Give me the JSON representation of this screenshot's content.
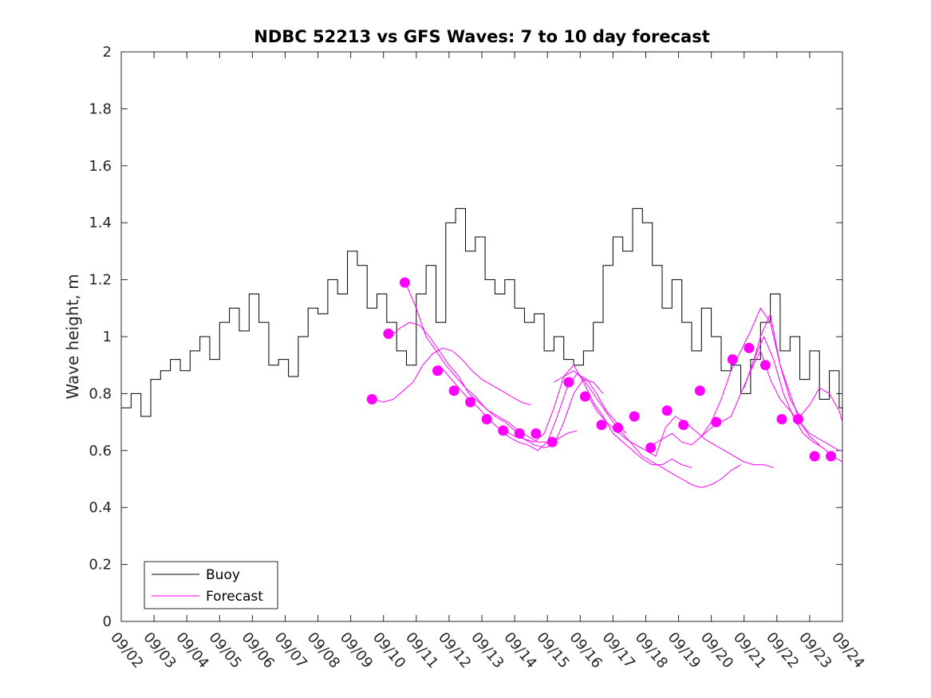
{
  "chart_data": {
    "type": "line",
    "title": "NDBC 52213 vs GFS Waves: 7 to 10 day forecast",
    "xlabel": "",
    "ylabel": "Wave height, m",
    "xlim": [
      0,
      22
    ],
    "ylim": [
      0,
      2
    ],
    "x_tick_labels": [
      "09/02",
      "09/03",
      "09/04",
      "09/05",
      "09/06",
      "09/07",
      "09/08",
      "09/09",
      "09/10",
      "09/11",
      "09/12",
      "09/13",
      "09/14",
      "09/15",
      "09/16",
      "09/17",
      "09/18",
      "09/19",
      "09/20",
      "09/21",
      "09/22",
      "09/23",
      "09/24"
    ],
    "y_ticks": [
      0,
      0.2,
      0.4,
      0.6,
      0.8,
      1,
      1.2,
      1.4,
      1.6,
      1.8,
      2
    ],
    "y_tick_labels": [
      "0",
      "0.2",
      "0.4",
      "0.6",
      "0.8",
      "1",
      "1.2",
      "1.4",
      "1.6",
      "1.8",
      "2"
    ],
    "legend": {
      "position": "bottom-left",
      "entries": [
        {
          "label": "Buoy",
          "color": "#000000"
        },
        {
          "label": "Forecast",
          "color": "#ff00ff"
        }
      ]
    },
    "buoy": {
      "name": "Buoy",
      "color": "#000000",
      "x": [
        0,
        0.3,
        0.6,
        0.9,
        1.2,
        1.5,
        1.8,
        2.1,
        2.4,
        2.7,
        3.0,
        3.3,
        3.6,
        3.9,
        4.2,
        4.5,
        4.8,
        5.1,
        5.4,
        5.7,
        6.0,
        6.3,
        6.6,
        6.9,
        7.2,
        7.5,
        7.8,
        8.1,
        8.4,
        8.7,
        9.0,
        9.3,
        9.6,
        9.9,
        10.2,
        10.5,
        10.8,
        11.1,
        11.4,
        11.7,
        12.0,
        12.3,
        12.6,
        12.9,
        13.2,
        13.5,
        13.8,
        14.1,
        14.4,
        14.7,
        15.0,
        15.3,
        15.6,
        15.9,
        16.2,
        16.5,
        16.8,
        17.1,
        17.4,
        17.7,
        18.0,
        18.3,
        18.6,
        18.9,
        19.2,
        19.5,
        19.8,
        20.1,
        20.4,
        20.7,
        21.0,
        21.3,
        21.6,
        21.9,
        22.0
      ],
      "y": [
        0.75,
        0.8,
        0.72,
        0.85,
        0.88,
        0.92,
        0.88,
        0.95,
        1.0,
        0.92,
        1.05,
        1.1,
        1.02,
        1.15,
        1.05,
        0.9,
        0.92,
        0.86,
        1.0,
        1.1,
        1.08,
        1.2,
        1.15,
        1.3,
        1.25,
        1.1,
        1.15,
        1.05,
        0.95,
        0.9,
        1.15,
        1.25,
        1.05,
        1.4,
        1.45,
        1.3,
        1.35,
        1.2,
        1.15,
        1.2,
        1.1,
        1.05,
        1.08,
        0.95,
        1.0,
        0.92,
        0.9,
        0.95,
        1.05,
        1.25,
        1.35,
        1.3,
        1.45,
        1.4,
        1.25,
        1.1,
        1.2,
        1.05,
        0.95,
        1.1,
        1.0,
        0.88,
        0.9,
        0.8,
        0.92,
        1.05,
        1.15,
        0.95,
        1.0,
        0.85,
        0.95,
        0.78,
        0.88,
        0.75,
        0.72
      ]
    },
    "forecast_lines": [
      {
        "x": [
          7.7,
          8.0,
          8.3,
          8.6,
          8.9,
          9.2,
          9.5,
          9.8,
          10.1,
          10.4,
          10.7,
          11.0,
          11.3,
          11.6,
          11.9,
          12.2,
          12.5
        ],
        "y": [
          0.78,
          0.77,
          0.78,
          0.81,
          0.84,
          0.9,
          0.94,
          0.96,
          0.95,
          0.92,
          0.88,
          0.85,
          0.83,
          0.81,
          0.79,
          0.77,
          0.76
        ]
      },
      {
        "x": [
          8.2,
          8.5,
          8.8,
          9.1,
          9.4,
          9.7,
          10.0,
          10.3,
          10.6,
          10.9,
          11.2,
          11.5,
          11.8,
          12.1,
          12.4,
          12.7,
          13.0,
          13.3,
          13.6,
          13.9
        ],
        "y": [
          1.0,
          1.03,
          1.05,
          1.04,
          1.0,
          0.95,
          0.9,
          0.86,
          0.8,
          0.77,
          0.74,
          0.72,
          0.7,
          0.67,
          0.65,
          0.63,
          0.63,
          0.64,
          0.66,
          0.67
        ]
      },
      {
        "x": [
          8.7,
          9.0,
          9.3,
          9.6,
          9.9,
          10.2,
          10.5,
          10.8,
          11.1,
          11.4,
          11.7,
          12.0,
          12.3,
          12.6,
          12.9,
          13.2,
          13.5,
          13.8,
          14.1,
          14.4,
          14.7
        ],
        "y": [
          1.18,
          1.1,
          1.0,
          0.95,
          0.9,
          0.86,
          0.82,
          0.79,
          0.75,
          0.72,
          0.7,
          0.67,
          0.64,
          0.62,
          0.61,
          0.62,
          0.7,
          0.8,
          0.85,
          0.84,
          0.8
        ]
      },
      {
        "x": [
          9.7,
          10.0,
          10.3,
          10.6,
          10.9,
          11.2,
          11.5,
          11.8,
          12.1,
          12.4,
          12.7,
          13.0,
          13.3,
          13.6,
          13.9,
          14.2,
          14.5,
          14.8,
          15.1,
          15.4
        ],
        "y": [
          0.9,
          0.86,
          0.82,
          0.78,
          0.75,
          0.71,
          0.68,
          0.65,
          0.63,
          0.62,
          0.6,
          0.63,
          0.72,
          0.82,
          0.87,
          0.85,
          0.8,
          0.74,
          0.7,
          0.66
        ]
      },
      {
        "x": [
          11.7,
          12.0,
          12.3,
          12.6,
          12.9,
          13.2,
          13.5,
          13.8,
          14.1,
          14.4,
          14.7,
          15.0,
          15.3,
          15.6,
          15.9,
          16.2,
          16.5,
          16.8,
          17.1,
          17.4
        ],
        "y": [
          0.67,
          0.65,
          0.64,
          0.63,
          0.66,
          0.75,
          0.86,
          0.9,
          0.84,
          0.77,
          0.72,
          0.66,
          0.63,
          0.6,
          0.57,
          0.55,
          0.55,
          0.57,
          0.55,
          0.54
        ]
      },
      {
        "x": [
          13.2,
          13.5,
          13.8,
          14.1,
          14.4,
          14.7,
          15.0,
          15.3,
          15.6,
          15.9,
          16.2,
          16.5,
          16.8,
          17.1,
          17.4,
          17.7,
          18.0,
          18.3,
          18.6,
          18.9
        ],
        "y": [
          0.84,
          0.86,
          0.88,
          0.85,
          0.8,
          0.75,
          0.7,
          0.66,
          0.62,
          0.58,
          0.56,
          0.54,
          0.52,
          0.5,
          0.48,
          0.47,
          0.48,
          0.5,
          0.53,
          0.55
        ]
      },
      {
        "x": [
          14.2,
          14.5,
          14.8,
          15.1,
          15.4,
          15.7,
          16.0,
          16.3,
          16.6,
          16.9,
          17.2,
          17.5,
          17.8,
          18.1,
          18.4,
          18.7,
          19.0,
          19.3,
          19.6,
          19.9
        ],
        "y": [
          0.8,
          0.74,
          0.7,
          0.67,
          0.64,
          0.62,
          0.6,
          0.58,
          0.68,
          0.72,
          0.7,
          0.67,
          0.64,
          0.62,
          0.6,
          0.58,
          0.56,
          0.55,
          0.55,
          0.54
        ]
      },
      {
        "x": [
          16.2,
          16.5,
          16.8,
          17.1,
          17.4,
          17.7,
          18.0,
          18.3,
          18.6,
          18.9,
          19.2,
          19.5,
          19.8,
          20.1,
          20.4,
          20.7,
          21.0,
          21.3
        ],
        "y": [
          0.62,
          0.64,
          0.66,
          0.63,
          0.62,
          0.65,
          0.7,
          0.78,
          0.88,
          0.95,
          1.02,
          1.1,
          1.05,
          0.9,
          0.8,
          0.7,
          0.65,
          0.62
        ]
      },
      {
        "x": [
          17.7,
          18.0,
          18.3,
          18.6,
          18.9,
          19.2,
          19.5,
          19.8,
          20.1,
          20.4,
          20.7,
          21.0,
          21.3,
          21.6,
          21.9,
          22.0
        ],
        "y": [
          0.65,
          0.68,
          0.7,
          0.72,
          0.8,
          0.88,
          0.95,
          0.85,
          0.78,
          0.74,
          0.7,
          0.66,
          0.64,
          0.62,
          0.6,
          0.6
        ]
      },
      {
        "x": [
          19.2,
          19.5,
          19.8,
          20.1,
          20.4,
          20.7,
          21.0,
          21.3,
          21.6,
          21.9,
          22.0
        ],
        "y": [
          0.88,
          1.0,
          1.08,
          0.9,
          0.78,
          0.72,
          0.76,
          0.82,
          0.8,
          0.74,
          0.7
        ]
      },
      {
        "x": [
          19.0,
          19.3,
          19.6,
          19.9,
          20.2,
          20.5,
          20.8,
          21.1,
          21.4,
          21.7,
          22.0
        ],
        "y": [
          0.82,
          0.92,
          1.0,
          0.92,
          0.8,
          0.72,
          0.66,
          0.63,
          0.61,
          0.58,
          0.56
        ]
      }
    ],
    "forecast_markers": {
      "color": "#ff00ff",
      "x": [
        7.65,
        8.15,
        8.65,
        9.65,
        10.15,
        10.65,
        11.15,
        11.65,
        12.15,
        12.65,
        13.15,
        13.65,
        14.15,
        14.65,
        15.15,
        15.65,
        16.15,
        16.65,
        17.15,
        17.65,
        18.15,
        18.65,
        19.15,
        19.65,
        20.15,
        20.65,
        21.15,
        21.65
      ],
      "y": [
        0.78,
        1.01,
        1.19,
        0.88,
        0.81,
        0.77,
        0.71,
        0.67,
        0.66,
        0.66,
        0.63,
        0.84,
        0.79,
        0.69,
        0.68,
        0.72,
        0.61,
        0.74,
        0.69,
        0.81,
        0.7,
        0.92,
        0.96,
        0.9,
        0.71,
        0.71,
        0.58,
        0.58
      ]
    }
  }
}
